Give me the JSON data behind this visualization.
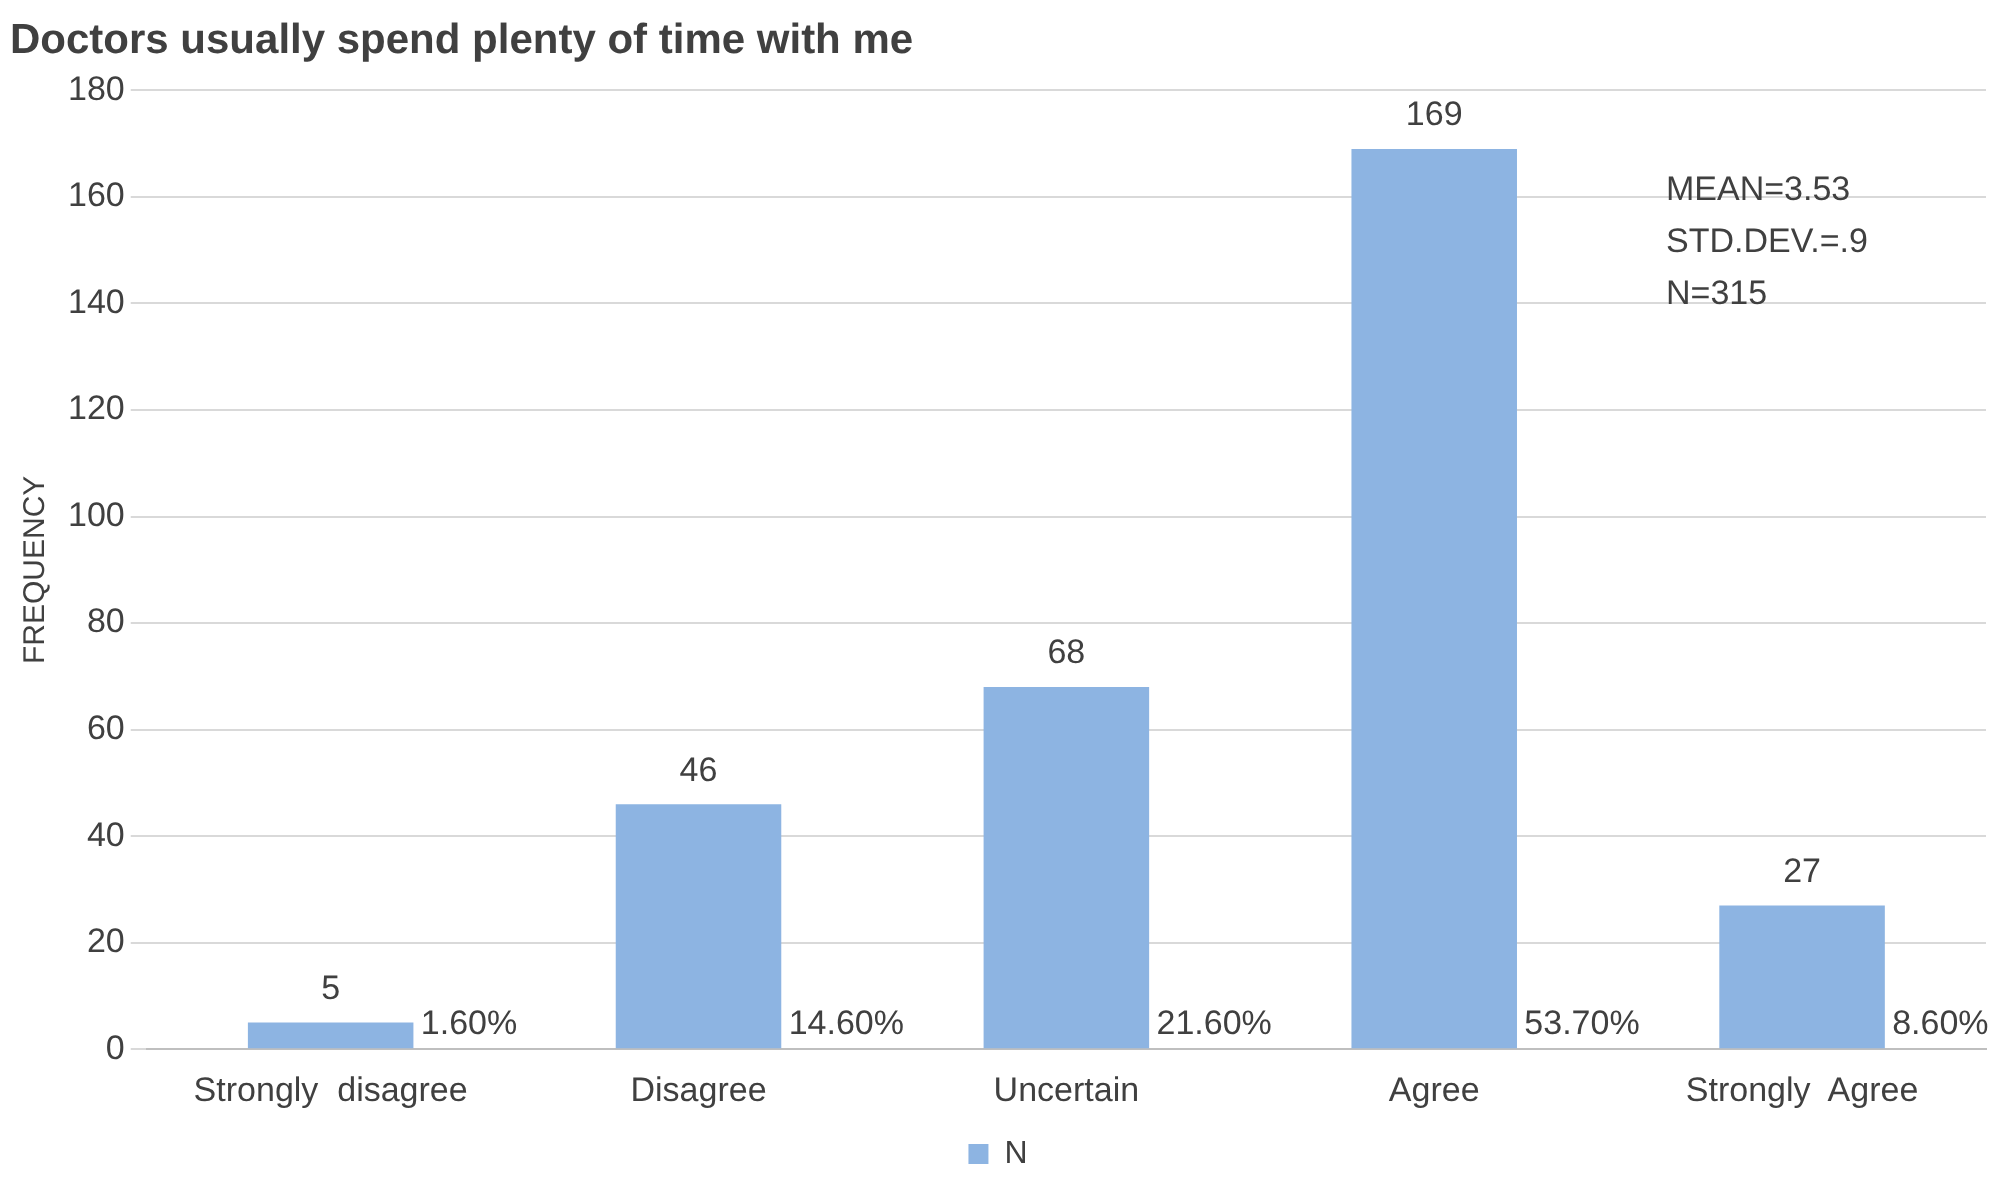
{
  "chart_data": {
    "type": "bar",
    "title": "Doctors usually spend plenty of time with me",
    "ylabel": "FREQUENCY",
    "categories": [
      "Strongly  disagree",
      "Disagree",
      "Uncertain",
      "Agree",
      "Strongly  Agree"
    ],
    "series": [
      {
        "name": "N",
        "color": "#8db4e2",
        "values": [
          5,
          46,
          68,
          169,
          27
        ]
      }
    ],
    "ylim": [
      0,
      180
    ],
    "yticks": [
      0,
      20,
      40,
      60,
      80,
      100,
      120,
      140,
      160,
      180
    ],
    "grid": "y",
    "legend": "bottom",
    "data_labels": true,
    "annotations": [
      "MEAN=3.53",
      "STD.DEV.=.9",
      "N=315",
      {
        "text": "1.60%",
        "x": "Strongly  disagree",
        "y": 0
      },
      {
        "text": "14.60%",
        "x": "Disagree",
        "y": 0
      },
      {
        "text": "21.60%",
        "x": "Uncertain",
        "y": 0
      },
      {
        "text": "53.70%",
        "x": "Agree",
        "y": 0
      },
      {
        "text": "8.60%",
        "x": "Strongly  Agree",
        "y": 0
      }
    ]
  }
}
